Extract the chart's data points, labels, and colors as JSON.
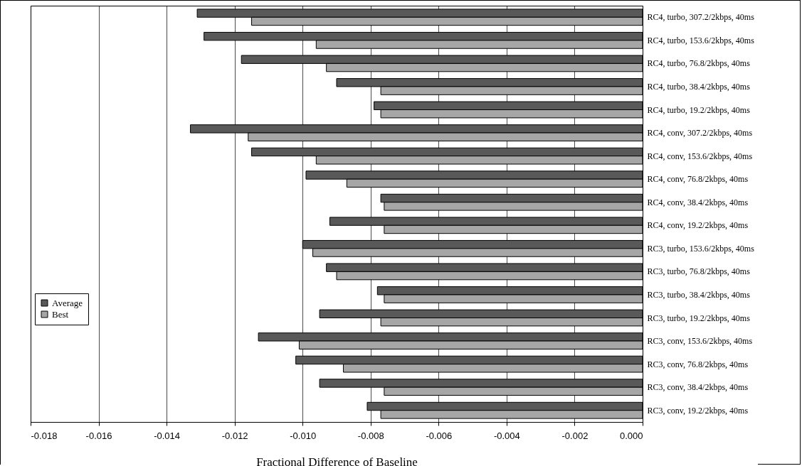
{
  "chart_data": {
    "type": "bar",
    "orientation": "horizontal",
    "xlabel": "Fractional Difference of Baseline",
    "categories": [
      "RC4, turbo, 307.2/2kbps, 40ms",
      "RC4, turbo, 153.6/2kbps, 40ms",
      "RC4, turbo, 76.8/2kbps, 40ms",
      "RC4, turbo, 38.4/2kbps, 40ms",
      "RC4, turbo, 19.2/2kbps, 40ms",
      "RC4, conv, 307.2/2kbps, 40ms",
      "RC4, conv, 153.6/2kbps, 40ms",
      "RC4, conv, 76.8/2kbps, 40ms",
      "RC4, conv, 38.4/2kbps, 40ms",
      "RC4, conv, 19.2/2kbps, 40ms",
      "RC3, turbo, 153.6/2kbps, 40ms",
      "RC3, turbo, 76.8/2kbps, 40ms",
      "RC3, turbo, 38.4/2kbps, 40ms",
      "RC3, turbo, 19.2/2kbps, 40ms",
      "RC3, conv, 153.6/2kbps, 40ms",
      "RC3, conv, 76.8/2kbps, 40ms",
      "RC3, conv, 38.4/2kbps, 40ms",
      "RC3, conv, 19.2/2kbps, 40ms"
    ],
    "series": [
      {
        "name": "Average",
        "color": "#595959",
        "values": [
          -0.0131,
          -0.0129,
          -0.0118,
          -0.009,
          -0.0079,
          -0.0133,
          -0.0115,
          -0.0099,
          -0.0077,
          -0.0092,
          -0.01,
          -0.0093,
          -0.0078,
          -0.0095,
          -0.0113,
          -0.0102,
          -0.0095,
          -0.0081
        ]
      },
      {
        "name": "Best",
        "color": "#a6a6a6",
        "values": [
          -0.0115,
          -0.0096,
          -0.0093,
          -0.0077,
          -0.0077,
          -0.0116,
          -0.0096,
          -0.0087,
          -0.0076,
          -0.0076,
          -0.0097,
          -0.009,
          -0.0076,
          -0.0077,
          -0.0101,
          -0.0088,
          -0.0076,
          -0.0077
        ]
      }
    ],
    "xlim": [
      -0.018,
      0
    ],
    "xticks": [
      {
        "value": -0.018,
        "label": "-0.018"
      },
      {
        "value": -0.016,
        "label": "-0.016"
      },
      {
        "value": -0.014,
        "label": "-0.014"
      },
      {
        "value": -0.012,
        "label": "-0.012"
      },
      {
        "value": -0.01,
        "label": "-0.010"
      },
      {
        "value": -0.008,
        "label": "-0.008"
      },
      {
        "value": -0.006,
        "label": "-0.006"
      },
      {
        "value": -0.004,
        "label": "-0.004"
      },
      {
        "value": -0.002,
        "label": "-0.002"
      },
      {
        "value": 0,
        "label": "0.000"
      }
    ],
    "grid": "x",
    "legend": "left"
  }
}
